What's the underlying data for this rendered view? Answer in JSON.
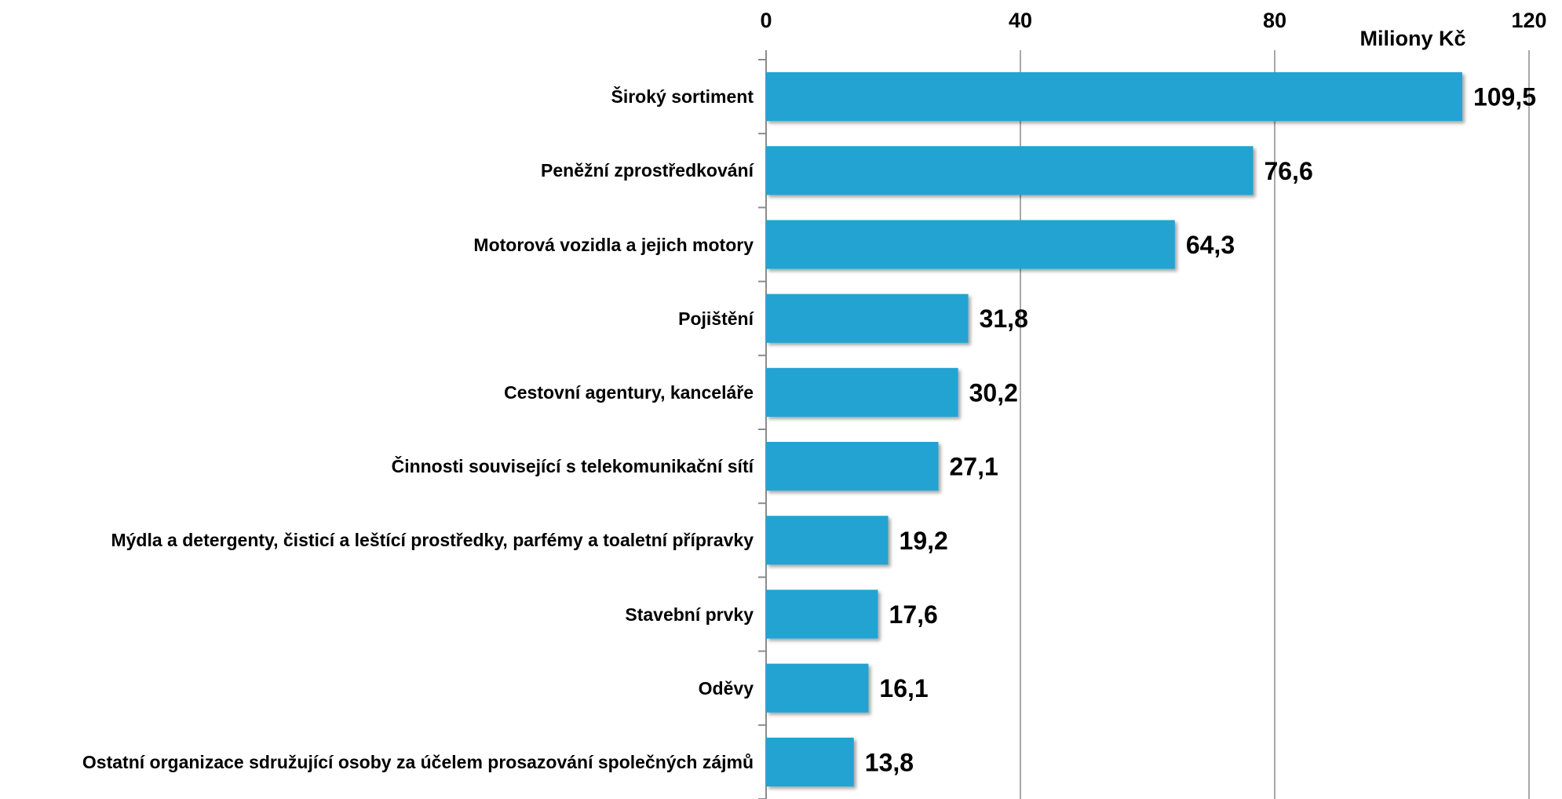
{
  "chart_data": {
    "type": "bar",
    "orientation": "horizontal",
    "x_axis_label": "Miliony Kč",
    "categories": [
      "Široký sortiment",
      "Peněžní zprostředkování",
      "Motorová vozidla a jejich motory",
      "Pojištění",
      "Cestovní agentury, kanceláře",
      "Činnosti související s telekomunikační sítí",
      "Mýdla a detergenty, čisticí a leštící prostředky, parfémy a toaletní přípravky",
      "Stavební prvky",
      "Oděvy",
      "Ostatní organizace sdružující osoby za účelem prosazování společných zájmů"
    ],
    "values": [
      109.5,
      76.6,
      64.3,
      31.8,
      30.2,
      27.1,
      19.2,
      17.6,
      16.1,
      13.8
    ],
    "value_labels": [
      "109,5",
      "76,6",
      "64,3",
      "31,8",
      "30,2",
      "27,1",
      "19,2",
      "17,6",
      "16,1",
      "13,8"
    ],
    "color": "#23a3d2",
    "xlim": [
      0,
      120
    ],
    "xticks": [
      0,
      40,
      80,
      120
    ],
    "grid": true
  }
}
